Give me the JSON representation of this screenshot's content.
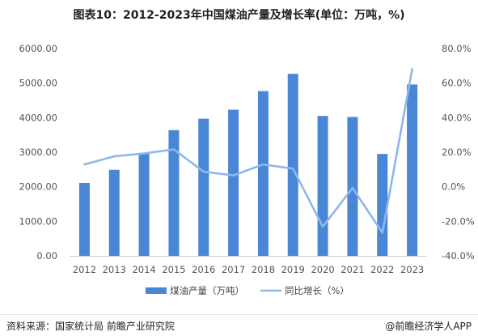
{
  "title": "图表10：2012-2023年中国煤油产量及增长率(单位：万吨，%)",
  "source": "资料来源：国家统计局 前瞻产业研究院",
  "brand": "@前瞻经济学人APP",
  "colors": {
    "bar": "#4a86d6",
    "line": "#8fb7ea"
  },
  "chart_data": {
    "type": "bar",
    "categories": [
      "2012",
      "2013",
      "2014",
      "2015",
      "2016",
      "2017",
      "2018",
      "2019",
      "2020",
      "2021",
      "2022",
      "2023"
    ],
    "series": [
      {
        "name": "煤油产量（万吨）",
        "type": "bar",
        "axis": "left",
        "values": [
          2110,
          2490,
          2970,
          3640,
          3970,
          4230,
          4770,
          5270,
          4050,
          4020,
          2950,
          4960
        ]
      },
      {
        "name": "同比增长（%）",
        "type": "line",
        "axis": "right",
        "values": [
          12.9,
          17.6,
          19.3,
          21.6,
          8.7,
          6.6,
          12.9,
          10.5,
          -23.1,
          -0.7,
          -26.6,
          68.1
        ]
      }
    ],
    "y_left": {
      "min": 0,
      "max": 6000,
      "step": 1000,
      "tick_labels": [
        "0.00",
        "1000.00",
        "2000.00",
        "3000.00",
        "4000.00",
        "5000.00",
        "6000.00"
      ]
    },
    "y_right": {
      "min": -40,
      "max": 80,
      "step": 20,
      "tick_labels": [
        "-40.0%",
        "-20.0%",
        "0.0%",
        "20.0%",
        "40.0%",
        "60.0%",
        "80.0%"
      ]
    },
    "grid": false,
    "legend": "bottom-center"
  }
}
